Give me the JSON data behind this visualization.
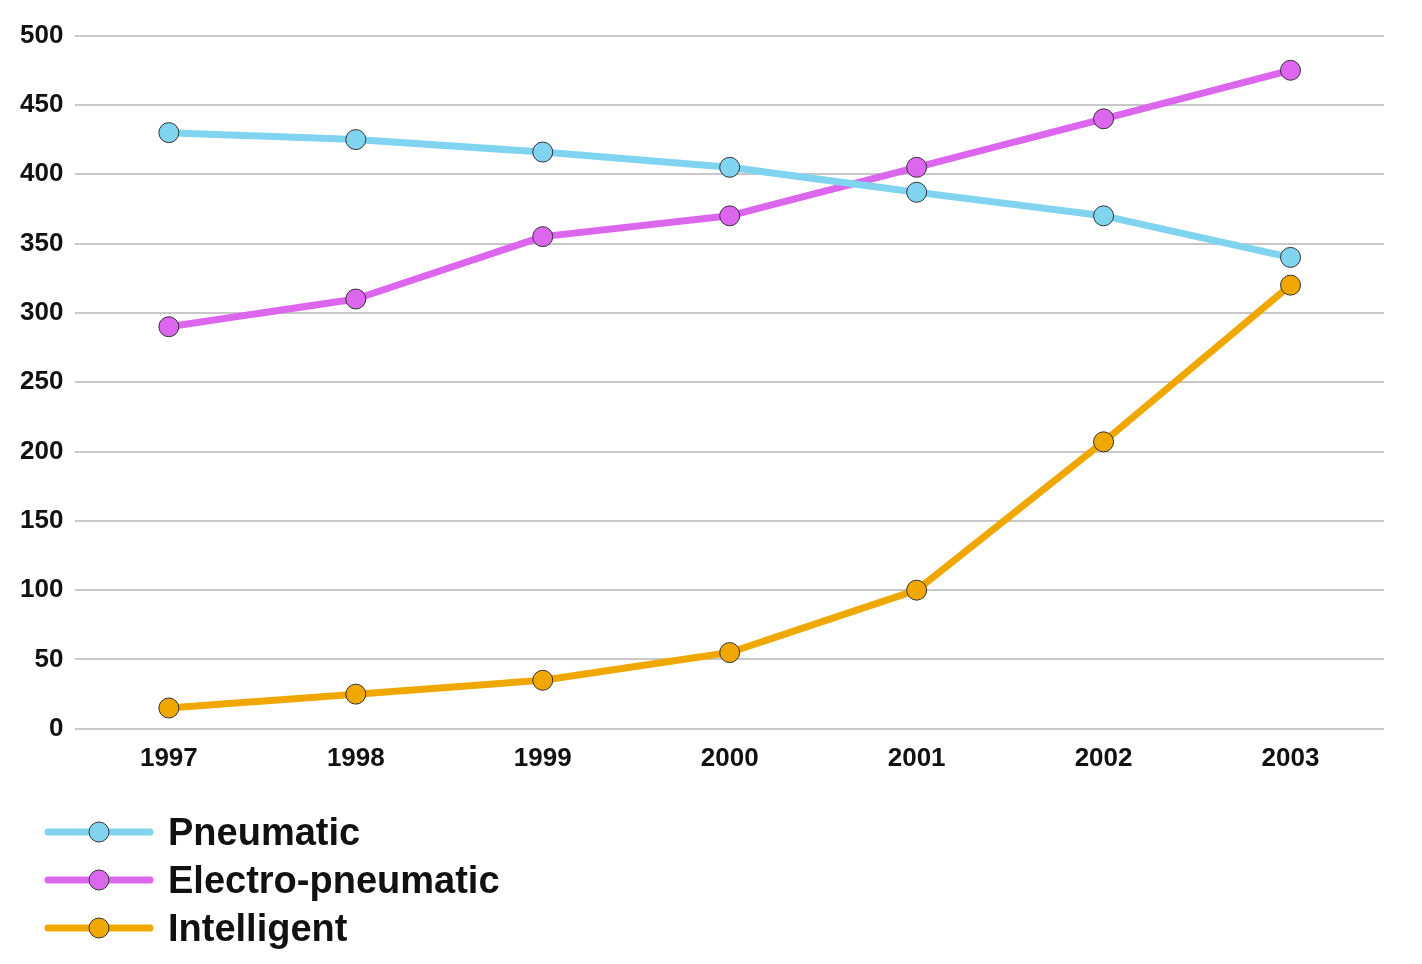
{
  "chart_data": {
    "type": "line",
    "categories": [
      "1997",
      "1998",
      "1999",
      "2000",
      "2001",
      "2002",
      "2003"
    ],
    "series": [
      {
        "name": "Pneumatic",
        "color": "#80d4f0",
        "values": [
          430,
          425,
          416,
          405,
          387,
          370,
          340
        ]
      },
      {
        "name": "Electro-pneumatic",
        "color": "#dd66ee",
        "values": [
          290,
          310,
          355,
          370,
          405,
          440,
          475
        ]
      },
      {
        "name": "Intelligent",
        "color": "#f0a800",
        "values": [
          15,
          25,
          35,
          55,
          100,
          207,
          320
        ]
      }
    ],
    "ylim": [
      0,
      500
    ],
    "yticks": [
      0,
      50,
      100,
      150,
      200,
      250,
      300,
      350,
      400,
      450,
      500
    ],
    "grid": "y",
    "legend": "bottom left",
    "marker": "circle",
    "line_style": "solid"
  }
}
